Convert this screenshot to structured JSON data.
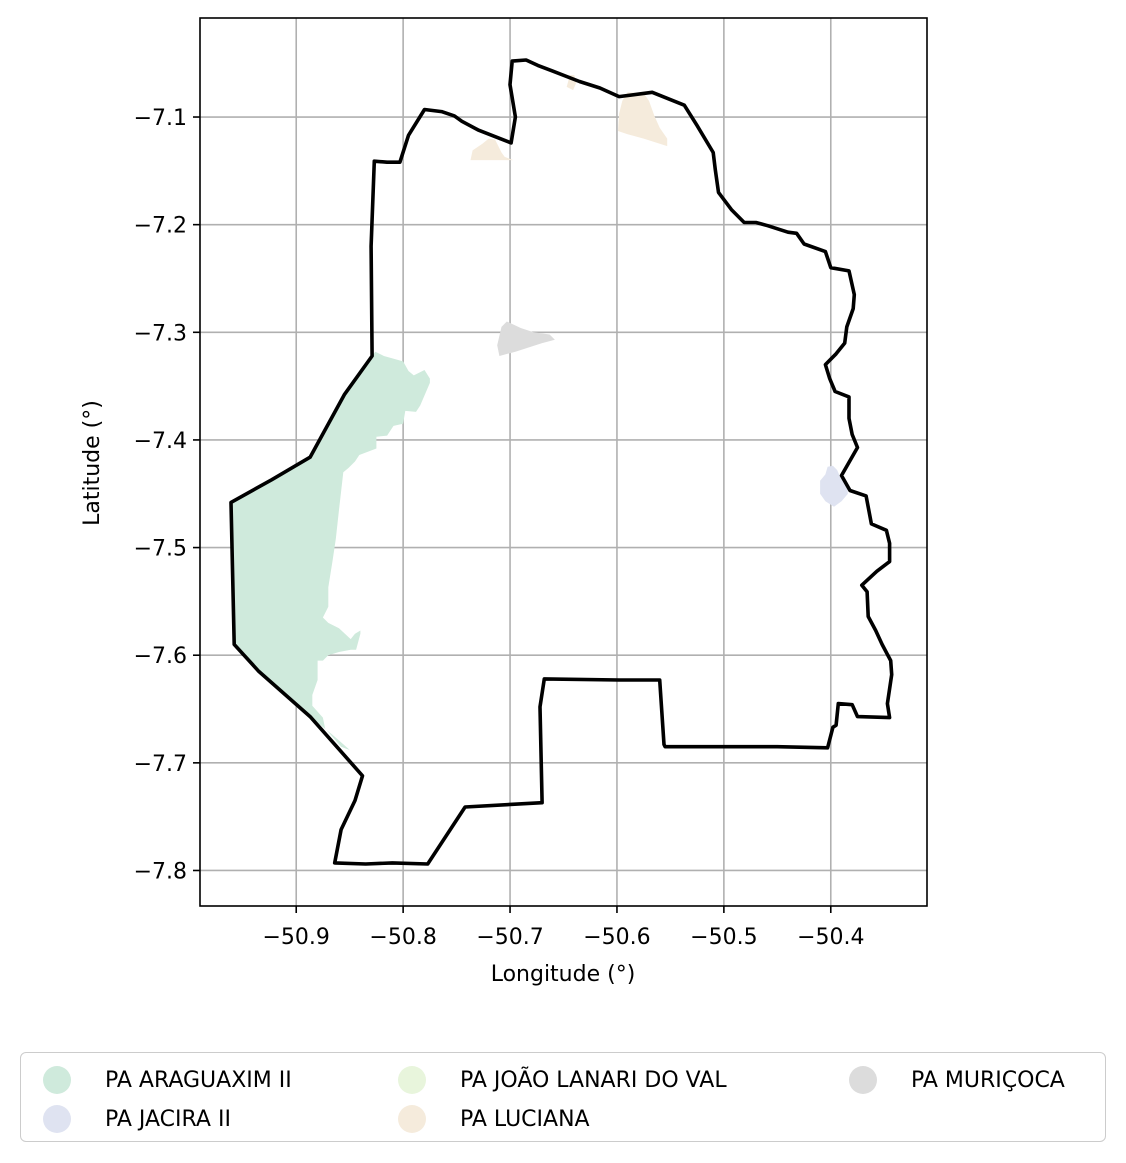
{
  "chart_data": {
    "type": "map",
    "xlabel": "Longitude (°)",
    "ylabel": "Latitude (°)",
    "xlim": [
      -50.99,
      -50.31
    ],
    "ylim": [
      -7.833,
      -7.008
    ],
    "grid": true,
    "xticks": [
      -50.9,
      -50.8,
      -50.7,
      -50.6,
      -50.5,
      -50.4
    ],
    "yticks": [
      -7.1,
      -7.2,
      -7.3,
      -7.4,
      -7.5,
      -7.6,
      -7.7,
      -7.8
    ],
    "xtick_labels": [
      "−50.9",
      "−50.8",
      "−50.7",
      "−50.6",
      "−50.5",
      "−50.4"
    ],
    "ytick_labels": [
      "−7.1",
      "−7.2",
      "−7.3",
      "−7.4",
      "−7.5",
      "−7.6",
      "−7.7",
      "−7.8"
    ],
    "legend_position": "bottom",
    "legend": [
      {
        "label": "PA ARAGUAXIM II",
        "color": "#cfeadc"
      },
      {
        "label": "PA JACIRA II",
        "color": "#dfe3f1"
      },
      {
        "label": "PA JOÃO LANARI DO VAL",
        "color": "#e8f5dc"
      },
      {
        "label": "PA LUCIANA",
        "color": "#f5ebdc"
      },
      {
        "label": "PA MURIÇOCA",
        "color": "#dcdcdc"
      }
    ],
    "boundary": [
      [
        -50.835,
        -7.794
      ],
      [
        -50.81,
        -7.793
      ],
      [
        -50.777,
        -7.794
      ],
      [
        -50.742,
        -7.741
      ],
      [
        -50.67,
        -7.737
      ],
      [
        -50.672,
        -7.648
      ],
      [
        -50.668,
        -7.622
      ],
      [
        -50.598,
        -7.623
      ],
      [
        -50.56,
        -7.623
      ],
      [
        -50.556,
        -7.683
      ],
      [
        -50.555,
        -7.685
      ],
      [
        -50.5,
        -7.685
      ],
      [
        -50.45,
        -7.685
      ],
      [
        -50.403,
        -7.686
      ],
      [
        -50.398,
        -7.667
      ],
      [
        -50.395,
        -7.665
      ],
      [
        -50.393,
        -7.645
      ],
      [
        -50.38,
        -7.646
      ],
      [
        -50.375,
        -7.657
      ],
      [
        -50.345,
        -7.658
      ],
      [
        -50.347,
        -7.645
      ],
      [
        -50.343,
        -7.618
      ],
      [
        -50.344,
        -7.605
      ],
      [
        -50.352,
        -7.59
      ],
      [
        -50.358,
        -7.577
      ],
      [
        -50.365,
        -7.564
      ],
      [
        -50.366,
        -7.541
      ],
      [
        -50.371,
        -7.535
      ],
      [
        -50.357,
        -7.522
      ],
      [
        -50.345,
        -7.513
      ],
      [
        -50.345,
        -7.496
      ],
      [
        -50.348,
        -7.484
      ],
      [
        -50.362,
        -7.478
      ],
      [
        -50.367,
        -7.452
      ],
      [
        -50.382,
        -7.447
      ],
      [
        -50.39,
        -7.433
      ],
      [
        -50.375,
        -7.407
      ],
      [
        -50.38,
        -7.395
      ],
      [
        -50.383,
        -7.38
      ],
      [
        -50.383,
        -7.36
      ],
      [
        -50.396,
        -7.355
      ],
      [
        -50.401,
        -7.343
      ],
      [
        -50.405,
        -7.33
      ],
      [
        -50.395,
        -7.32
      ],
      [
        -50.387,
        -7.31
      ],
      [
        -50.385,
        -7.295
      ],
      [
        -50.379,
        -7.278
      ],
      [
        -50.378,
        -7.265
      ],
      [
        -50.383,
        -7.243
      ],
      [
        -50.4,
        -7.24
      ],
      [
        -50.405,
        -7.225
      ],
      [
        -50.425,
        -7.218
      ],
      [
        -50.432,
        -7.208
      ],
      [
        -50.44,
        -7.207
      ],
      [
        -50.459,
        -7.201
      ],
      [
        -50.47,
        -7.198
      ],
      [
        -50.481,
        -7.198
      ],
      [
        -50.493,
        -7.186
      ],
      [
        -50.505,
        -7.17
      ],
      [
        -50.508,
        -7.149
      ],
      [
        -50.51,
        -7.133
      ],
      [
        -50.525,
        -7.108
      ],
      [
        -50.537,
        -7.089
      ],
      [
        -50.567,
        -7.077
      ],
      [
        -50.598,
        -7.081
      ],
      [
        -50.616,
        -7.073
      ],
      [
        -50.635,
        -7.067
      ],
      [
        -50.661,
        -7.057
      ],
      [
        -50.674,
        -7.052
      ],
      [
        -50.685,
        -7.047
      ],
      [
        -50.698,
        -7.048
      ],
      [
        -50.7,
        -7.07
      ],
      [
        -50.695,
        -7.1
      ],
      [
        -50.699,
        -7.124
      ],
      [
        -50.73,
        -7.112
      ],
      [
        -50.745,
        -7.104
      ],
      [
        -50.752,
        -7.099
      ],
      [
        -50.764,
        -7.095
      ],
      [
        -50.78,
        -7.093
      ],
      [
        -50.795,
        -7.117
      ],
      [
        -50.803,
        -7.142
      ],
      [
        -50.815,
        -7.142
      ],
      [
        -50.827,
        -7.141
      ],
      [
        -50.83,
        -7.22
      ],
      [
        -50.829,
        -7.322
      ],
      [
        -50.855,
        -7.358
      ],
      [
        -50.887,
        -7.416
      ],
      [
        -50.923,
        -7.437
      ],
      [
        -50.961,
        -7.458
      ],
      [
        -50.958,
        -7.59
      ],
      [
        -50.935,
        -7.615
      ],
      [
        -50.887,
        -7.657
      ],
      [
        -50.838,
        -7.712
      ],
      [
        -50.845,
        -7.735
      ],
      [
        -50.858,
        -7.762
      ],
      [
        -50.864,
        -7.793
      ],
      [
        -50.835,
        -7.794
      ]
    ],
    "areas": [
      {
        "name": "PA ARAGUAXIM II",
        "polygon": [
          [
            -50.958,
            -7.59
          ],
          [
            -50.961,
            -7.458
          ],
          [
            -50.923,
            -7.437
          ],
          [
            -50.887,
            -7.416
          ],
          [
            -50.855,
            -7.358
          ],
          [
            -50.829,
            -7.322
          ],
          [
            -50.826,
            -7.318
          ],
          [
            -50.818,
            -7.322
          ],
          [
            -50.8,
            -7.327
          ],
          [
            -50.795,
            -7.336
          ],
          [
            -50.79,
            -7.34
          ],
          [
            -50.78,
            -7.335
          ],
          [
            -50.775,
            -7.343
          ],
          [
            -50.775,
            -7.347
          ],
          [
            -50.784,
            -7.368
          ],
          [
            -50.788,
            -7.374
          ],
          [
            -50.798,
            -7.373
          ],
          [
            -50.8,
            -7.385
          ],
          [
            -50.809,
            -7.387
          ],
          [
            -50.815,
            -7.396
          ],
          [
            -50.825,
            -7.397
          ],
          [
            -50.825,
            -7.408
          ],
          [
            -50.841,
            -7.414
          ],
          [
            -50.845,
            -7.42
          ],
          [
            -50.851,
            -7.426
          ],
          [
            -50.856,
            -7.43
          ],
          [
            -50.86,
            -7.465
          ],
          [
            -50.863,
            -7.492
          ],
          [
            -50.866,
            -7.512
          ],
          [
            -50.87,
            -7.537
          ],
          [
            -50.87,
            -7.555
          ],
          [
            -50.875,
            -7.565
          ],
          [
            -50.87,
            -7.57
          ],
          [
            -50.86,
            -7.575
          ],
          [
            -50.849,
            -7.585
          ],
          [
            -50.845,
            -7.58
          ],
          [
            -50.84,
            -7.577
          ],
          [
            -50.84,
            -7.58
          ],
          [
            -50.844,
            -7.595
          ],
          [
            -50.849,
            -7.595
          ],
          [
            -50.86,
            -7.597
          ],
          [
            -50.87,
            -7.6
          ],
          [
            -50.875,
            -7.605
          ],
          [
            -50.88,
            -7.605
          ],
          [
            -50.88,
            -7.623
          ],
          [
            -50.885,
            -7.637
          ],
          [
            -50.885,
            -7.647
          ],
          [
            -50.875,
            -7.658
          ],
          [
            -50.873,
            -7.668
          ],
          [
            -50.858,
            -7.685
          ],
          [
            -50.853,
            -7.687
          ],
          [
            -50.85,
            -7.688
          ],
          [
            -50.866,
            -7.674
          ],
          [
            -50.887,
            -7.657
          ],
          [
            -50.935,
            -7.615
          ],
          [
            -50.958,
            -7.59
          ]
        ]
      },
      {
        "name": "PA JACIRA II",
        "polygon": [
          [
            -50.41,
            -7.438
          ],
          [
            -50.405,
            -7.432
          ],
          [
            -50.403,
            -7.425
          ],
          [
            -50.398,
            -7.424
          ],
          [
            -50.394,
            -7.428
          ],
          [
            -50.391,
            -7.435
          ],
          [
            -50.385,
            -7.44
          ],
          [
            -50.384,
            -7.45
          ],
          [
            -50.39,
            -7.457
          ],
          [
            -50.397,
            -7.462
          ],
          [
            -50.405,
            -7.457
          ],
          [
            -50.41,
            -7.45
          ],
          [
            -50.41,
            -7.438
          ]
        ]
      },
      {
        "name": "PA LUCIANA",
        "polygon": [
          [
            -50.59,
            -7.077
          ],
          [
            -50.575,
            -7.078
          ],
          [
            -50.57,
            -7.085
          ],
          [
            -50.565,
            -7.099
          ],
          [
            -50.56,
            -7.11
          ],
          [
            -50.553,
            -7.12
          ],
          [
            -50.553,
            -7.127
          ],
          [
            -50.575,
            -7.12
          ],
          [
            -50.59,
            -7.116
          ],
          [
            -50.599,
            -7.113
          ],
          [
            -50.598,
            -7.097
          ],
          [
            -50.595,
            -7.085
          ],
          [
            -50.59,
            -7.077
          ]
        ]
      },
      {
        "name": "PA LUCIANA",
        "polygon": [
          [
            -50.726,
            -7.125
          ],
          [
            -50.72,
            -7.12
          ],
          [
            -50.714,
            -7.121
          ],
          [
            -50.708,
            -7.133
          ],
          [
            -50.705,
            -7.137
          ],
          [
            -50.697,
            -7.14
          ],
          [
            -50.737,
            -7.14
          ],
          [
            -50.735,
            -7.131
          ],
          [
            -50.726,
            -7.125
          ]
        ]
      },
      {
        "name": "PA LUCIANA",
        "polygon": [
          [
            -50.64,
            -7.061
          ],
          [
            -50.644,
            -7.061
          ],
          [
            -50.647,
            -7.072
          ],
          [
            -50.641,
            -7.075
          ],
          [
            -50.638,
            -7.068
          ],
          [
            -50.64,
            -7.061
          ]
        ]
      },
      {
        "name": "PA MURIÇOCA",
        "polygon": [
          [
            -50.703,
            -7.29
          ],
          [
            -50.69,
            -7.296
          ],
          [
            -50.678,
            -7.3
          ],
          [
            -50.663,
            -7.302
          ],
          [
            -50.658,
            -7.307
          ],
          [
            -50.67,
            -7.31
          ],
          [
            -50.695,
            -7.318
          ],
          [
            -50.71,
            -7.322
          ],
          [
            -50.712,
            -7.312
          ],
          [
            -50.708,
            -7.295
          ],
          [
            -50.703,
            -7.29
          ]
        ]
      }
    ]
  }
}
